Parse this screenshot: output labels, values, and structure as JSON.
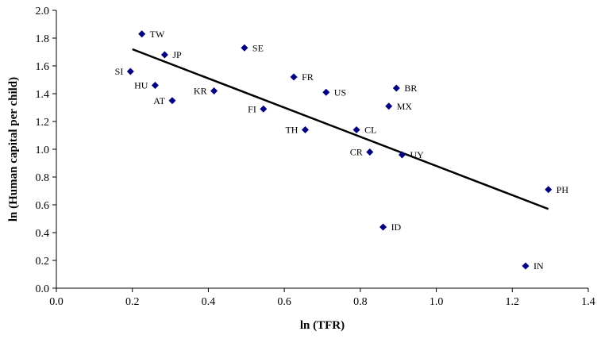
{
  "chart_data": {
    "type": "scatter",
    "xlabel": "ln (TFR)",
    "ylabel": "ln (Human capital per child)",
    "xlim": [
      0.0,
      1.4
    ],
    "ylim": [
      0.0,
      2.0
    ],
    "x_ticks": [
      "0.0",
      "0.2",
      "0.4",
      "0.6",
      "0.8",
      "1.0",
      "1.2",
      "1.4"
    ],
    "y_ticks": [
      "0.0",
      "0.2",
      "0.4",
      "0.6",
      "0.8",
      "1.0",
      "1.2",
      "1.4",
      "1.6",
      "1.8",
      "2.0"
    ],
    "grid": false,
    "marker_color": "#000080",
    "trendline": {
      "x": [
        0.2,
        1.295
      ],
      "y": [
        1.72,
        0.57
      ],
      "color": "#000000"
    },
    "points": [
      {
        "label": "TW",
        "x": 0.225,
        "y": 1.83
      },
      {
        "label": "SE",
        "x": 0.495,
        "y": 1.73
      },
      {
        "label": "JP",
        "x": 0.285,
        "y": 1.68
      },
      {
        "label": "SI",
        "x": 0.195,
        "y": 1.56
      },
      {
        "label": "FR",
        "x": 0.625,
        "y": 1.52
      },
      {
        "label": "HU",
        "x": 0.26,
        "y": 1.46
      },
      {
        "label": "BR",
        "x": 0.895,
        "y": 1.44
      },
      {
        "label": "KR",
        "x": 0.415,
        "y": 1.42
      },
      {
        "label": "US",
        "x": 0.71,
        "y": 1.41
      },
      {
        "label": "AT",
        "x": 0.305,
        "y": 1.35
      },
      {
        "label": "MX",
        "x": 0.875,
        "y": 1.31
      },
      {
        "label": "FI",
        "x": 0.545,
        "y": 1.29
      },
      {
        "label": "TH",
        "x": 0.655,
        "y": 1.14
      },
      {
        "label": "CL",
        "x": 0.79,
        "y": 1.14
      },
      {
        "label": "CR",
        "x": 0.825,
        "y": 0.98
      },
      {
        "label": "UY",
        "x": 0.91,
        "y": 0.96
      },
      {
        "label": "PH",
        "x": 1.295,
        "y": 0.71
      },
      {
        "label": "ID",
        "x": 0.86,
        "y": 0.44
      },
      {
        "label": "IN",
        "x": 1.235,
        "y": 0.16
      }
    ]
  }
}
